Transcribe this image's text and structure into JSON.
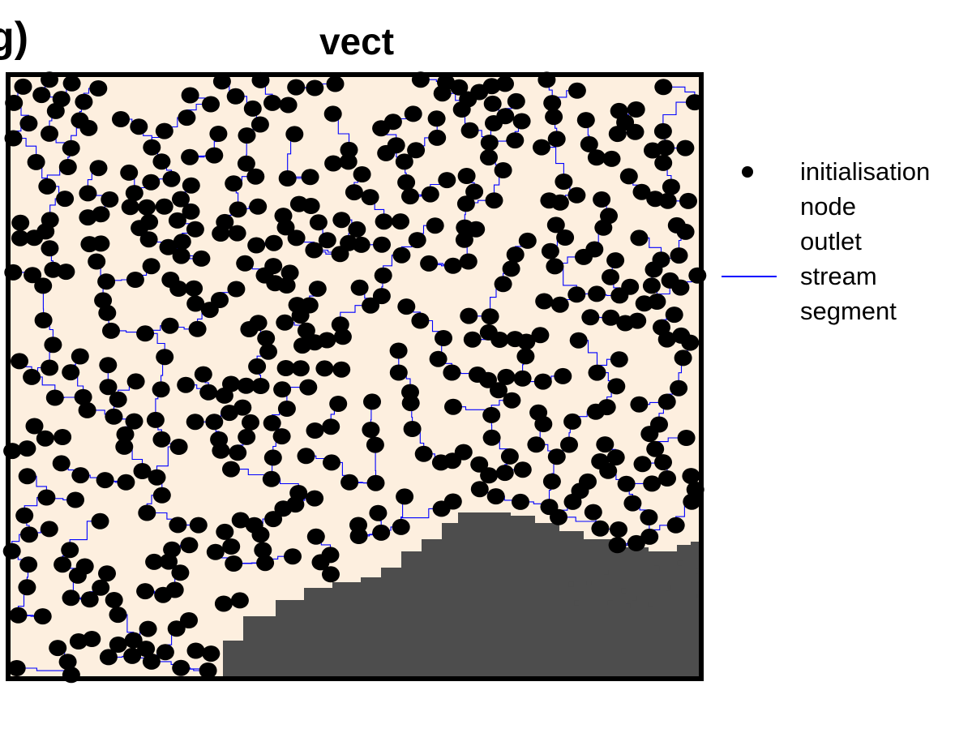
{
  "panel_label": "g)",
  "map": {
    "title": "vect",
    "colors": {
      "background": "#fdefdf",
      "masked_area": "#4d4d4d",
      "node": "#000000",
      "stream": "#0000ff",
      "border": "#000000"
    },
    "legend": [
      {
        "symbol": "dot-icon",
        "label_lines": [
          "initialisation",
          "node",
          "outlet"
        ]
      },
      {
        "symbol": "line-icon",
        "label_lines": [
          "stream",
          "segment"
        ]
      }
    ]
  }
}
